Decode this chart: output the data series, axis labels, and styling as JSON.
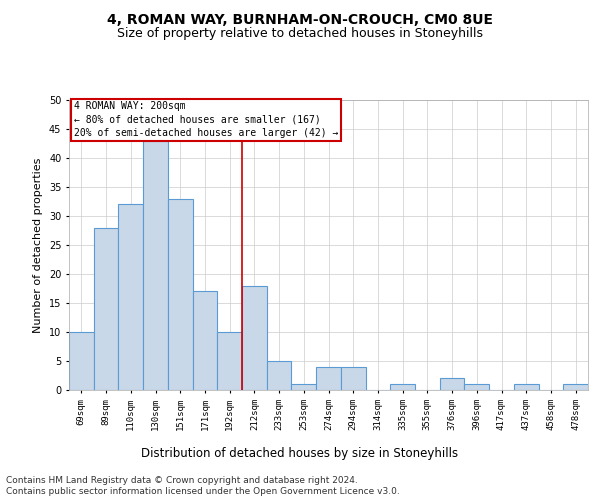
{
  "title": "4, ROMAN WAY, BURNHAM-ON-CROUCH, CM0 8UE",
  "subtitle": "Size of property relative to detached houses in Stoneyhills",
  "xlabel": "Distribution of detached houses by size in Stoneyhills",
  "ylabel": "Number of detached properties",
  "categories": [
    "69sqm",
    "89sqm",
    "110sqm",
    "130sqm",
    "151sqm",
    "171sqm",
    "192sqm",
    "212sqm",
    "233sqm",
    "253sqm",
    "274sqm",
    "294sqm",
    "314sqm",
    "335sqm",
    "355sqm",
    "376sqm",
    "396sqm",
    "417sqm",
    "437sqm",
    "458sqm",
    "478sqm"
  ],
  "values": [
    10,
    28,
    32,
    43,
    33,
    17,
    10,
    18,
    5,
    1,
    4,
    4,
    0,
    1,
    0,
    2,
    1,
    0,
    1,
    0,
    1
  ],
  "bar_color": "#c8d8e8",
  "bar_edgecolor": "#5b9bd5",
  "bar_linewidth": 0.8,
  "vline_x": 6.5,
  "vline_color": "#cc0000",
  "vline_linewidth": 1.2,
  "annotation_text": "4 ROMAN WAY: 200sqm\n← 80% of detached houses are smaller (167)\n20% of semi-detached houses are larger (42) →",
  "annotation_box_color": "#cc0000",
  "ylim": [
    0,
    50
  ],
  "yticks": [
    0,
    5,
    10,
    15,
    20,
    25,
    30,
    35,
    40,
    45,
    50
  ],
  "footnote1": "Contains HM Land Registry data © Crown copyright and database right 2024.",
  "footnote2": "Contains public sector information licensed under the Open Government Licence v3.0.",
  "bg_color": "#ffffff",
  "grid_color": "#cccccc",
  "title_fontsize": 10,
  "subtitle_fontsize": 9,
  "tick_fontsize": 6.5,
  "ylabel_fontsize": 8,
  "xlabel_fontsize": 8.5,
  "footnote_fontsize": 6.5
}
